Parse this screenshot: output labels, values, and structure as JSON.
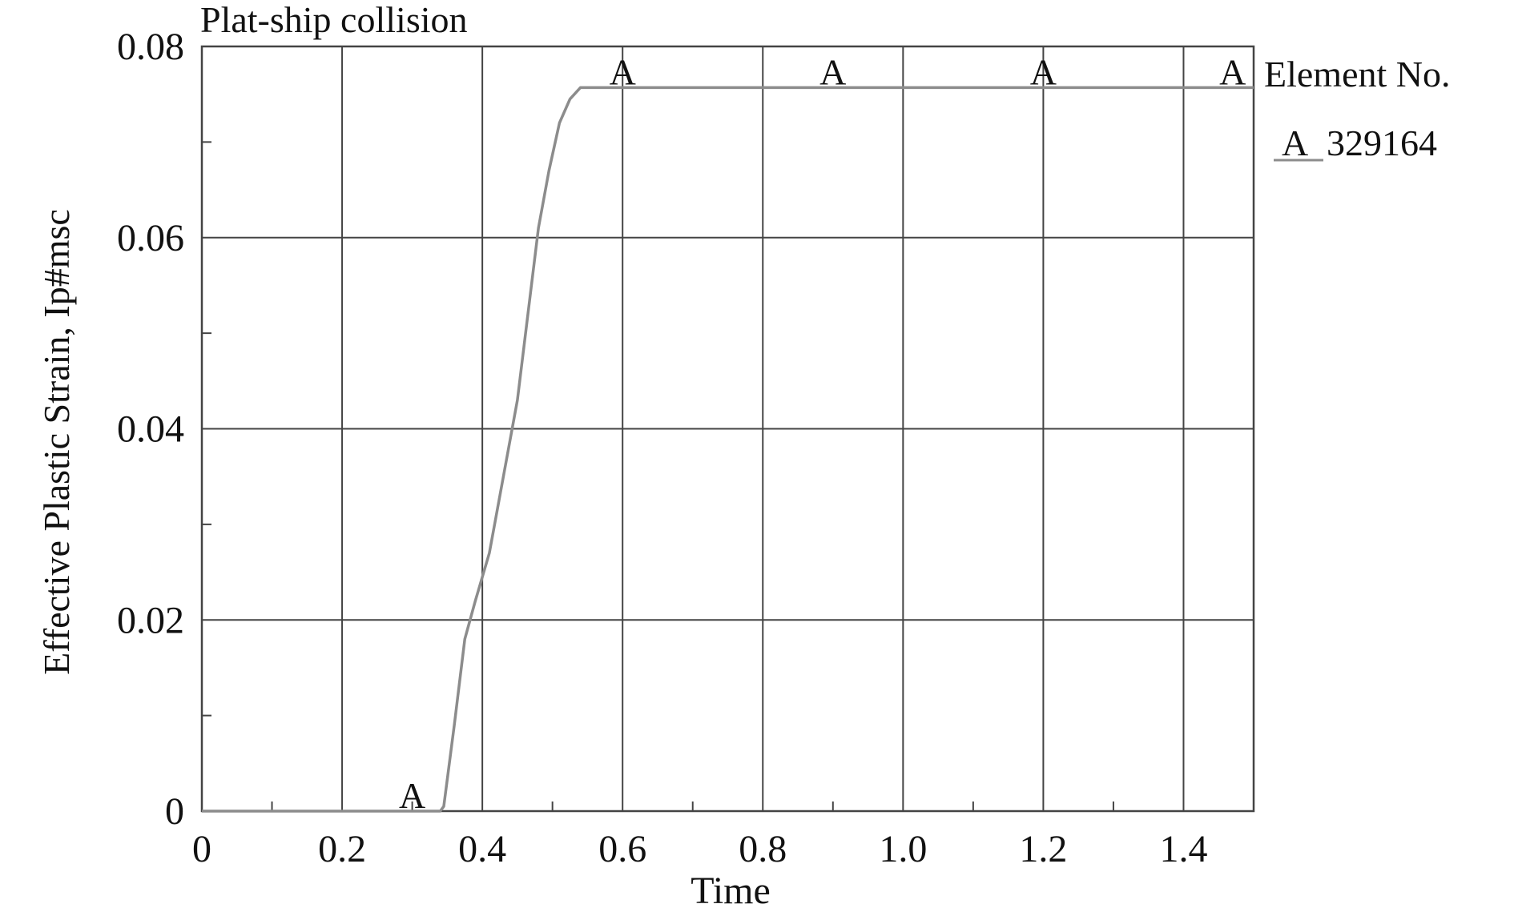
{
  "chart_data": {
    "type": "line",
    "title": "Plat-ship collision",
    "xlabel": "Time",
    "ylabel": "Effective Plastic Strain, Ip#msc",
    "xlim": [
      0,
      1.5
    ],
    "ylim": [
      0,
      0.08
    ],
    "x_ticks": [
      0,
      0.2,
      0.4,
      0.6,
      0.8,
      1.0,
      1.2,
      1.4
    ],
    "x_tick_labels": [
      "0",
      "0.2",
      "0.4",
      "0.6",
      "0.8",
      "1.0",
      "1.2",
      "1.4"
    ],
    "x_minor_ticks": [
      0.1,
      0.3,
      0.5,
      0.7,
      0.9,
      1.1,
      1.3
    ],
    "y_ticks": [
      0,
      0.02,
      0.04,
      0.06,
      0.08
    ],
    "y_tick_labels": [
      "0",
      "0.02",
      "0.04",
      "0.06",
      "0.08"
    ],
    "y_minor_ticks": [
      0.01,
      0.03,
      0.05,
      0.07
    ],
    "grid": true,
    "legend": {
      "title": "Element No.",
      "placement": "top-right",
      "entries": [
        {
          "symbol": "A",
          "label": "329164"
        }
      ]
    },
    "series": [
      {
        "symbol": "A",
        "x": [
          0,
          0.34,
          0.345,
          0.36,
          0.375,
          0.39,
          0.41,
          0.43,
          0.45,
          0.465,
          0.48,
          0.495,
          0.51,
          0.525,
          0.54,
          1.5
        ],
        "y": [
          0,
          0,
          0.0005,
          0.009,
          0.018,
          0.022,
          0.027,
          0.035,
          0.043,
          0.052,
          0.061,
          0.067,
          0.072,
          0.0745,
          0.0757,
          0.0757
        ],
        "markers_x": [
          0.3,
          0.6,
          0.9,
          1.2,
          1.47
        ]
      }
    ],
    "colors": {
      "line": "#8c8c8c",
      "grid": "#444444",
      "axis": "#444444"
    }
  }
}
